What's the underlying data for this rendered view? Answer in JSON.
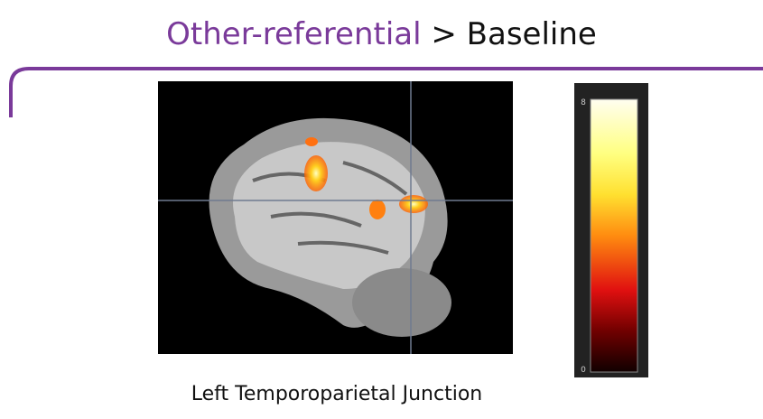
{
  "title": {
    "highlight": "Other-referential",
    "rest": "> Baseline"
  },
  "caption": "Left Temporoparietal Junction",
  "colorbar": {
    "max_label": "8",
    "min_label": "0"
  }
}
